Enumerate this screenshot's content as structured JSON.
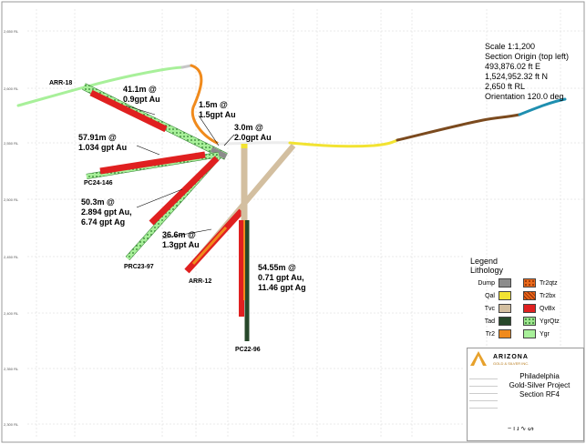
{
  "map_info": {
    "scale": "Scale 1:1,200",
    "origin_label": "Section Origin (top left)",
    "easting": "493,876.02 ft E",
    "northing": "1,524,952.32 ft N",
    "elevation": "2,650 ft RL",
    "orientation": "Orientation 120.0 deg"
  },
  "drillholes": [
    {
      "id": "ARR-18"
    },
    {
      "id": "PC24-146"
    },
    {
      "id": "PRC23-97"
    },
    {
      "id": "ARR-12"
    },
    {
      "id": "PC22-96"
    }
  ],
  "intercepts": [
    {
      "line1": "41.1m @",
      "line2": "0.9gpt Au"
    },
    {
      "line1": "1.5m @",
      "line2": "1.5gpt Au"
    },
    {
      "line1": "3.0m @",
      "line2": "2.0gpt Au"
    },
    {
      "line1": "57.91m @",
      "line2": "1.034 gpt Au"
    },
    {
      "line1": "50.3m @",
      "line2": "2.894 gpt Au,",
      "line3": "6.74 gpt Ag"
    },
    {
      "line1": "36.6m @",
      "line2": "1.3gpt Au"
    },
    {
      "line1": "54.55m @",
      "line2": "0.71 gpt Au,",
      "line3": "11.46 gpt Ag"
    }
  ],
  "legend": {
    "title_1": "Legend",
    "title_2": "Lithology",
    "items": [
      {
        "label": "Dump",
        "color": "#8c8c8c",
        "pattern": "solid"
      },
      {
        "label": "Tr2qtz",
        "color": "#e96a1c",
        "pattern": "dots"
      },
      {
        "label": "Qal",
        "color": "#f2e332",
        "pattern": "solid"
      },
      {
        "label": "Tr2bx",
        "color": "#e6631a",
        "pattern": "hatch"
      },
      {
        "label": "Tvc",
        "color": "#d3bfa0",
        "pattern": "solid"
      },
      {
        "label": "QvBx",
        "color": "#e02020",
        "pattern": "solid"
      },
      {
        "label": "Tad",
        "color": "#27482a",
        "pattern": "solid"
      },
      {
        "label": "YgrQtz",
        "color": "#9fe58f",
        "pattern": "dots"
      },
      {
        "label": "Tr2",
        "color": "#f08a1c",
        "pattern": "solid"
      },
      {
        "label": "Ygr",
        "color": "#a8f09a",
        "pattern": "solid"
      }
    ]
  },
  "title_block": {
    "company_1": "ARIZONA",
    "company_2": "GOLD & SILVER INC.",
    "project_1": "Philadelphia",
    "project_2": "Gold-Silver Project",
    "project_3": "Section RF4"
  },
  "colors": {
    "Ygr": "#a8f09a",
    "Qal": "#f2e332",
    "Tr2": "#f08a1c",
    "QvBx": "#e02020",
    "Tvc": "#d3bfa0",
    "Tad": "#27482a",
    "Dump": "#8c8c8c",
    "topo_brown": "#7b4a1e",
    "topo_blue": "#1f8fb0"
  }
}
